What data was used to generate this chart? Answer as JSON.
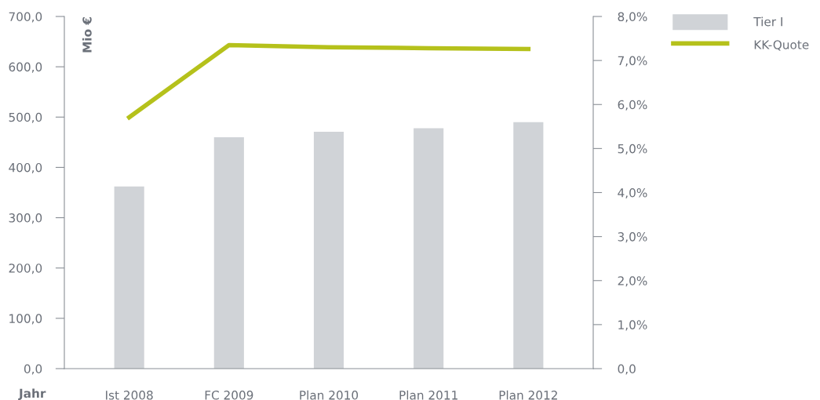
{
  "chart_data": {
    "type": "bar",
    "xlabel": "Jahr",
    "ylabel": "Mio €",
    "categories": [
      "Ist 2008",
      "FC 2009",
      "Plan 2010",
      "Plan 2011",
      "Plan 2012"
    ],
    "series": [
      {
        "name": "Tier I",
        "color": "#d0d3d7",
        "values": [
          362,
          460,
          471,
          478,
          490
        ]
      },
      {
        "name": "KK-Quote",
        "type": "line",
        "axis": "y2",
        "color": "#b5c11b",
        "values": [
          5.71,
          7.35,
          7.3,
          7.28,
          7.26
        ]
      }
    ],
    "ylim": [
      0,
      700
    ],
    "yticks": [
      {
        "value": 0,
        "label": "0,0"
      },
      {
        "value": 100,
        "label": "100,0"
      },
      {
        "value": 200,
        "label": "200,0"
      },
      {
        "value": 300,
        "label": "300,0"
      },
      {
        "value": 400,
        "label": "400,0"
      },
      {
        "value": 500,
        "label": "500,0"
      },
      {
        "value": 600,
        "label": "600,0"
      },
      {
        "value": 700,
        "label": "700,0"
      }
    ],
    "y2lim": [
      0,
      8
    ],
    "y2ticks": [
      {
        "value": 0,
        "label": "0,0"
      },
      {
        "value": 1,
        "label": "1,0%"
      },
      {
        "value": 2,
        "label": "2,0%"
      },
      {
        "value": 3,
        "label": "3,0%"
      },
      {
        "value": 4,
        "label": "4,0%"
      },
      {
        "value": 5,
        "label": "5,0%"
      },
      {
        "value": 6,
        "label": "6,0%"
      },
      {
        "value": 7,
        "label": "7,0%"
      },
      {
        "value": 8,
        "label": "8,0%"
      }
    ],
    "grid": false,
    "legend": "top right",
    "marker": "none",
    "line_style": "solid"
  }
}
